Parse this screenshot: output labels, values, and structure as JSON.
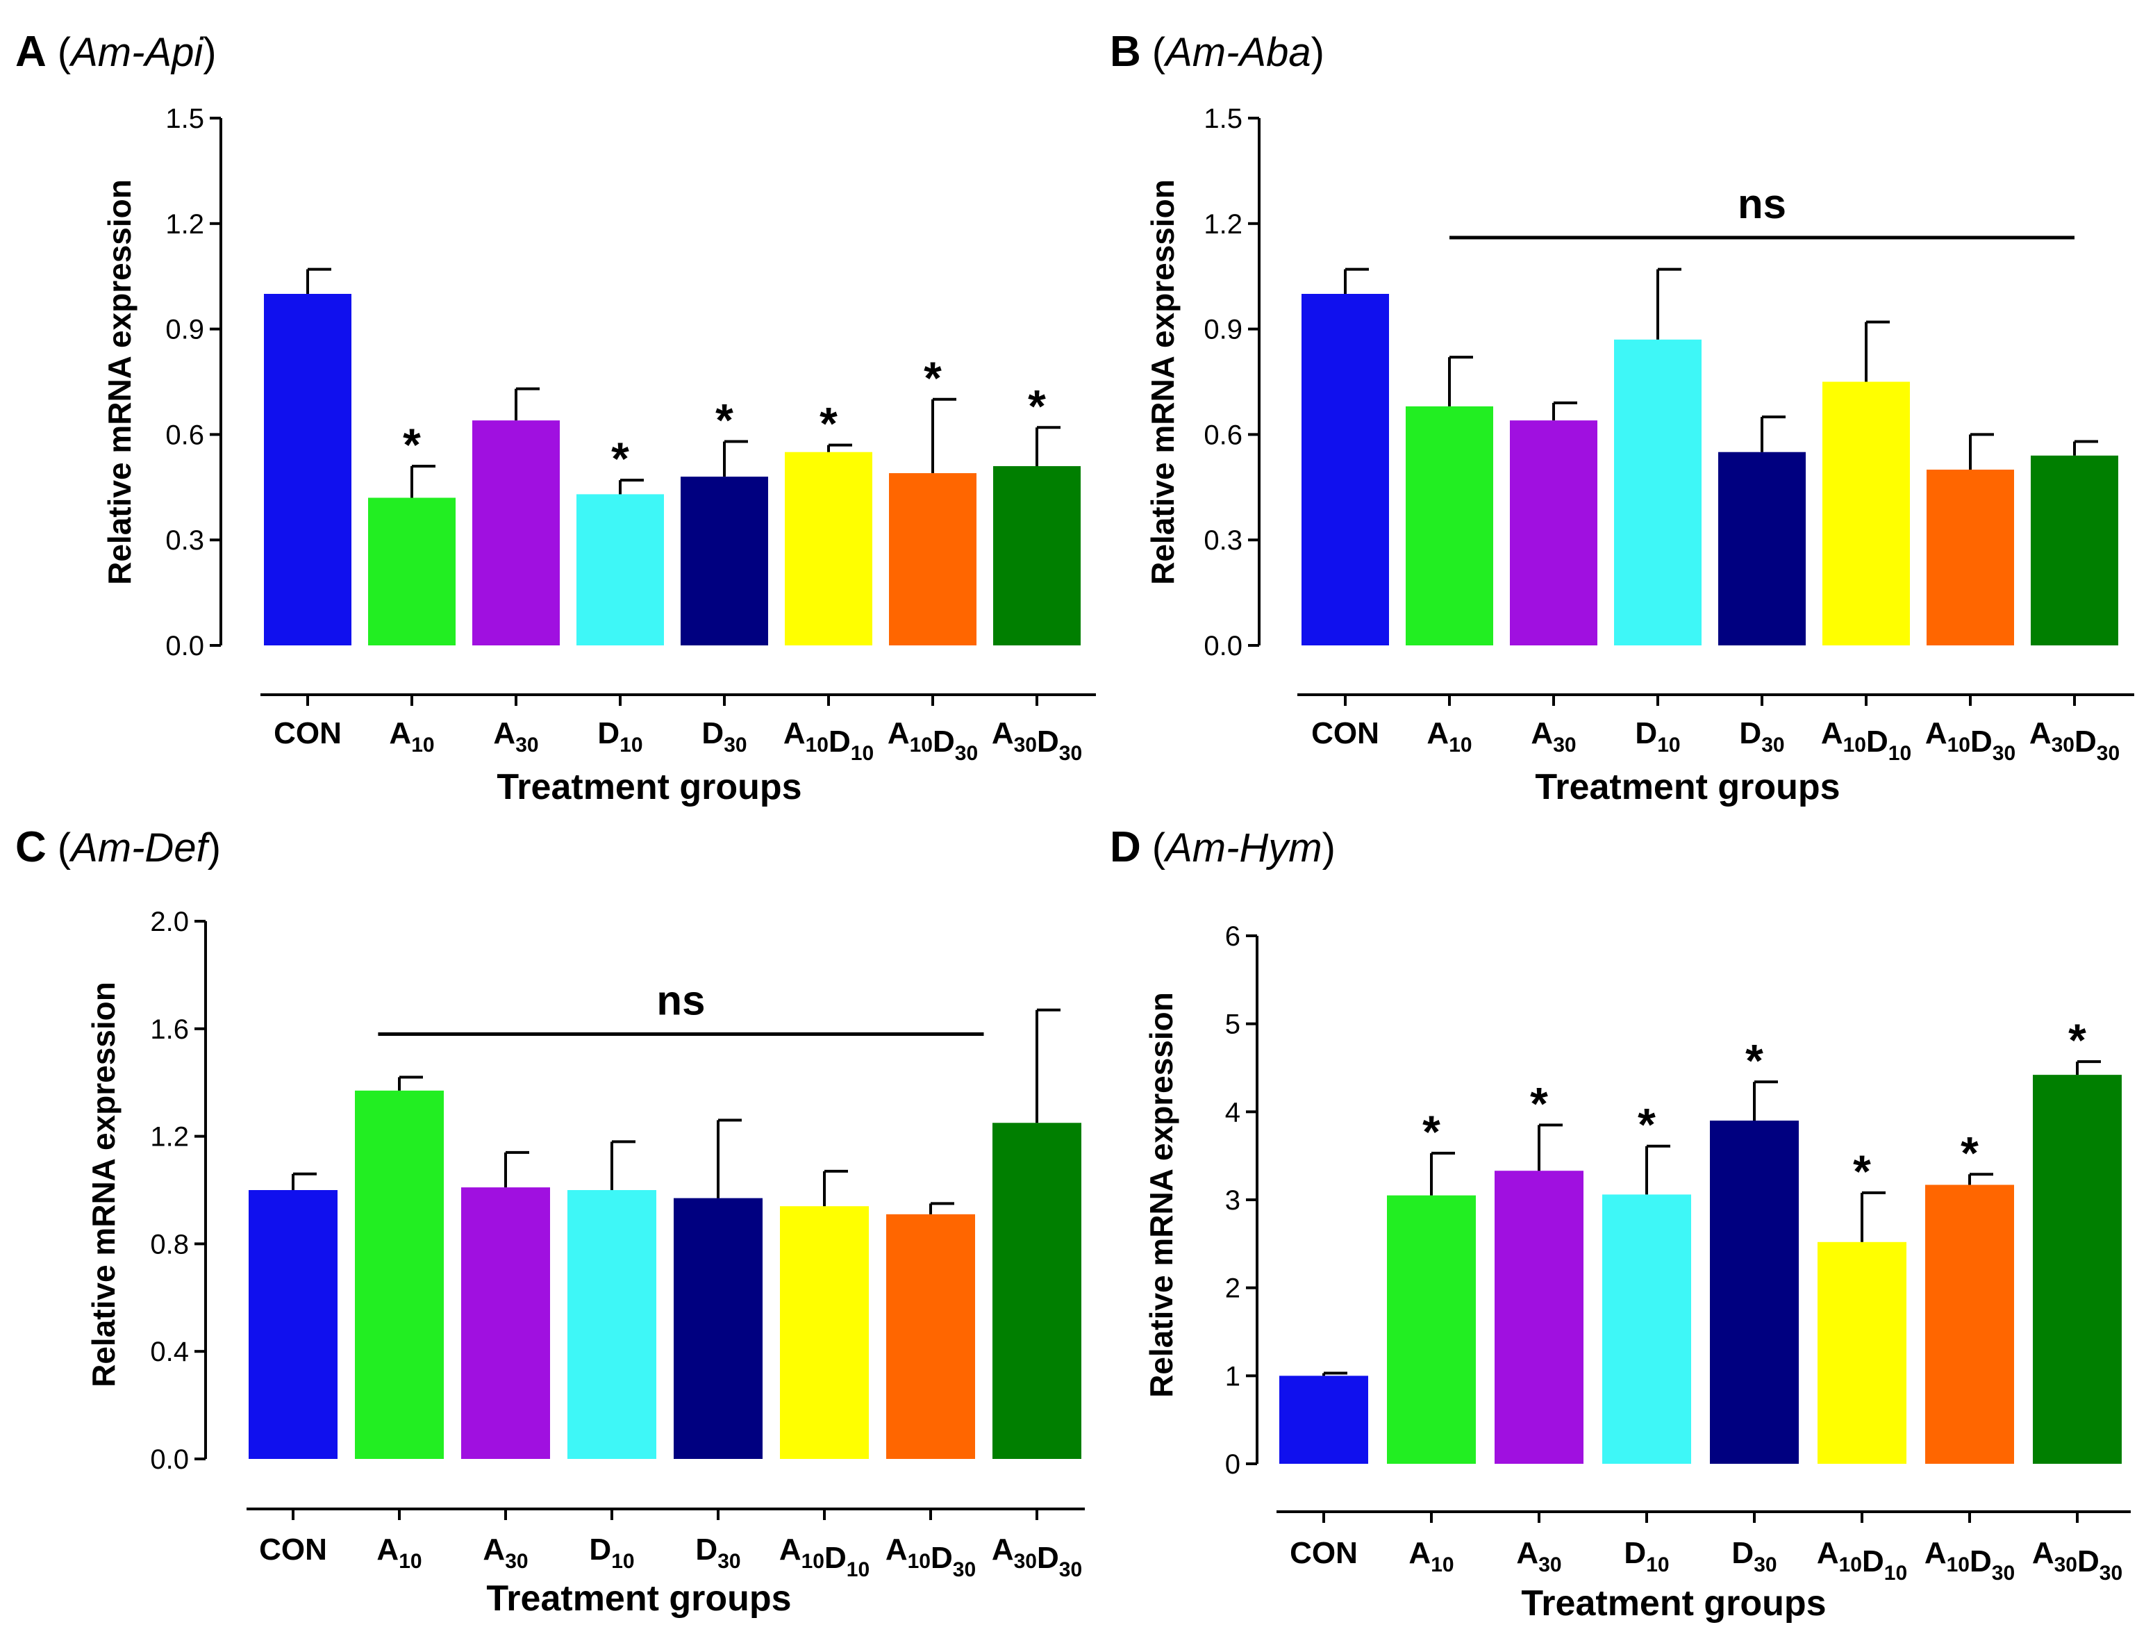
{
  "figure": {
    "title": ""
  },
  "chart_data": [
    {
      "panel": "A",
      "gene": "Am-Api",
      "type": "bar",
      "categories": [
        "CON",
        "A10",
        "A30",
        "D10",
        "D30",
        "A10D10",
        "A10D30",
        "A30D30"
      ],
      "category_parts": [
        [
          [
            "CON",
            ""
          ]
        ],
        [
          [
            "A",
            "10"
          ]
        ],
        [
          [
            "A",
            "30"
          ]
        ],
        [
          [
            "D",
            "10"
          ]
        ],
        [
          [
            "D",
            "30"
          ]
        ],
        [
          [
            "A",
            "10"
          ],
          [
            "D",
            "10"
          ]
        ],
        [
          [
            "A",
            "10"
          ],
          [
            "D",
            "30"
          ]
        ],
        [
          [
            "A",
            "30"
          ],
          [
            "D",
            "30"
          ]
        ]
      ],
      "values": [
        1.0,
        0.42,
        0.64,
        0.43,
        0.48,
        0.55,
        0.49,
        0.51
      ],
      "errors": [
        0.07,
        0.09,
        0.09,
        0.04,
        0.1,
        0.02,
        0.21,
        0.11
      ],
      "significance": [
        "",
        "*",
        "",
        "*",
        "*",
        "*",
        "*",
        "*"
      ],
      "ns_bar": null,
      "yticks": [
        "0.0",
        "0.3",
        "0.6",
        "0.9",
        "1.2",
        "1.5"
      ],
      "ylim": [
        0,
        1.5
      ],
      "xlabel": "Treatment groups",
      "ylabel": "Relative mRNA expression"
    },
    {
      "panel": "B",
      "gene": "Am-Aba",
      "type": "bar",
      "categories": [
        "CON",
        "A10",
        "A30",
        "D10",
        "D30",
        "A10D10",
        "A10D30",
        "A30D30"
      ],
      "category_parts": [
        [
          [
            "CON",
            ""
          ]
        ],
        [
          [
            "A",
            "10"
          ]
        ],
        [
          [
            "A",
            "30"
          ]
        ],
        [
          [
            "D",
            "10"
          ]
        ],
        [
          [
            "D",
            "30"
          ]
        ],
        [
          [
            "A",
            "10"
          ],
          [
            "D",
            "10"
          ]
        ],
        [
          [
            "A",
            "10"
          ],
          [
            "D",
            "30"
          ]
        ],
        [
          [
            "A",
            "30"
          ],
          [
            "D",
            "30"
          ]
        ]
      ],
      "values": [
        1.0,
        0.68,
        0.64,
        0.87,
        0.55,
        0.75,
        0.5,
        0.54
      ],
      "errors": [
        0.07,
        0.14,
        0.05,
        0.2,
        0.1,
        0.17,
        0.1,
        0.04
      ],
      "significance": [
        "",
        "",
        "",
        "",
        "",
        "",
        "",
        ""
      ],
      "ns_bar": {
        "label": "ns",
        "from": 1,
        "to": 7,
        "y": 1.16
      },
      "yticks": [
        "0.0",
        "0.3",
        "0.6",
        "0.9",
        "1.2",
        "1.5"
      ],
      "ylim": [
        0,
        1.5
      ],
      "xlabel": "Treatment groups",
      "ylabel": "Relative mRNA expression"
    },
    {
      "panel": "C",
      "gene": "Am-Def",
      "type": "bar",
      "categories": [
        "CON",
        "A10",
        "A30",
        "D10",
        "D30",
        "A10D10",
        "A10D30",
        "A30D30"
      ],
      "category_parts": [
        [
          [
            "CON",
            ""
          ]
        ],
        [
          [
            "A",
            "10"
          ]
        ],
        [
          [
            "A",
            "30"
          ]
        ],
        [
          [
            "D",
            "10"
          ]
        ],
        [
          [
            "D",
            "30"
          ]
        ],
        [
          [
            "A",
            "10"
          ],
          [
            "D",
            "10"
          ]
        ],
        [
          [
            "A",
            "10"
          ],
          [
            "D",
            "30"
          ]
        ],
        [
          [
            "A",
            "30"
          ],
          [
            "D",
            "30"
          ]
        ]
      ],
      "values": [
        1.0,
        1.37,
        1.01,
        1.0,
        0.97,
        0.94,
        0.91,
        1.25
      ],
      "errors": [
        0.06,
        0.05,
        0.13,
        0.18,
        0.29,
        0.13,
        0.04,
        0.42
      ],
      "significance": [
        "",
        "",
        "",
        "",
        "",
        "",
        "",
        ""
      ],
      "ns_bar": {
        "label": "ns",
        "from": 0.8,
        "to": 6.5,
        "y": 1.58
      },
      "yticks": [
        "0.0",
        "0.4",
        "0.8",
        "1.2",
        "1.6",
        "2.0"
      ],
      "ylim": [
        0,
        2.0
      ],
      "xlabel": "Treatment groups",
      "ylabel": "Relative mRNA expression"
    },
    {
      "panel": "D",
      "gene": "Am-Hym",
      "type": "bar",
      "categories": [
        "CON",
        "A10",
        "A30",
        "D10",
        "D30",
        "A10D10",
        "A10D30",
        "A30D30"
      ],
      "category_parts": [
        [
          [
            "CON",
            ""
          ]
        ],
        [
          [
            "A",
            "10"
          ]
        ],
        [
          [
            "A",
            "30"
          ]
        ],
        [
          [
            "D",
            "10"
          ]
        ],
        [
          [
            "D",
            "30"
          ]
        ],
        [
          [
            "A",
            "10"
          ],
          [
            "D",
            "10"
          ]
        ],
        [
          [
            "A",
            "10"
          ],
          [
            "D",
            "30"
          ]
        ],
        [
          [
            "A",
            "30"
          ],
          [
            "D",
            "30"
          ]
        ]
      ],
      "values": [
        1.0,
        3.05,
        3.33,
        3.06,
        3.9,
        2.52,
        3.17,
        4.42
      ],
      "errors": [
        0.03,
        0.48,
        0.52,
        0.55,
        0.44,
        0.56,
        0.12,
        0.15
      ],
      "significance": [
        "",
        "*",
        "*",
        "*",
        "*",
        "*",
        "*",
        "*"
      ],
      "ns_bar": null,
      "yticks": [
        "0",
        "1",
        "2",
        "3",
        "4",
        "5",
        "6"
      ],
      "ylim": [
        0,
        6
      ],
      "xlabel": "Treatment groups",
      "ylabel": "Relative mRNA expression"
    }
  ],
  "colors": {
    "bars": [
      "#1010ee",
      "#22ee22",
      "#a010e0",
      "#3ef7f7",
      "#000080",
      "#ffff00",
      "#ff6600",
      "#007f00"
    ],
    "axis": "#000000"
  }
}
